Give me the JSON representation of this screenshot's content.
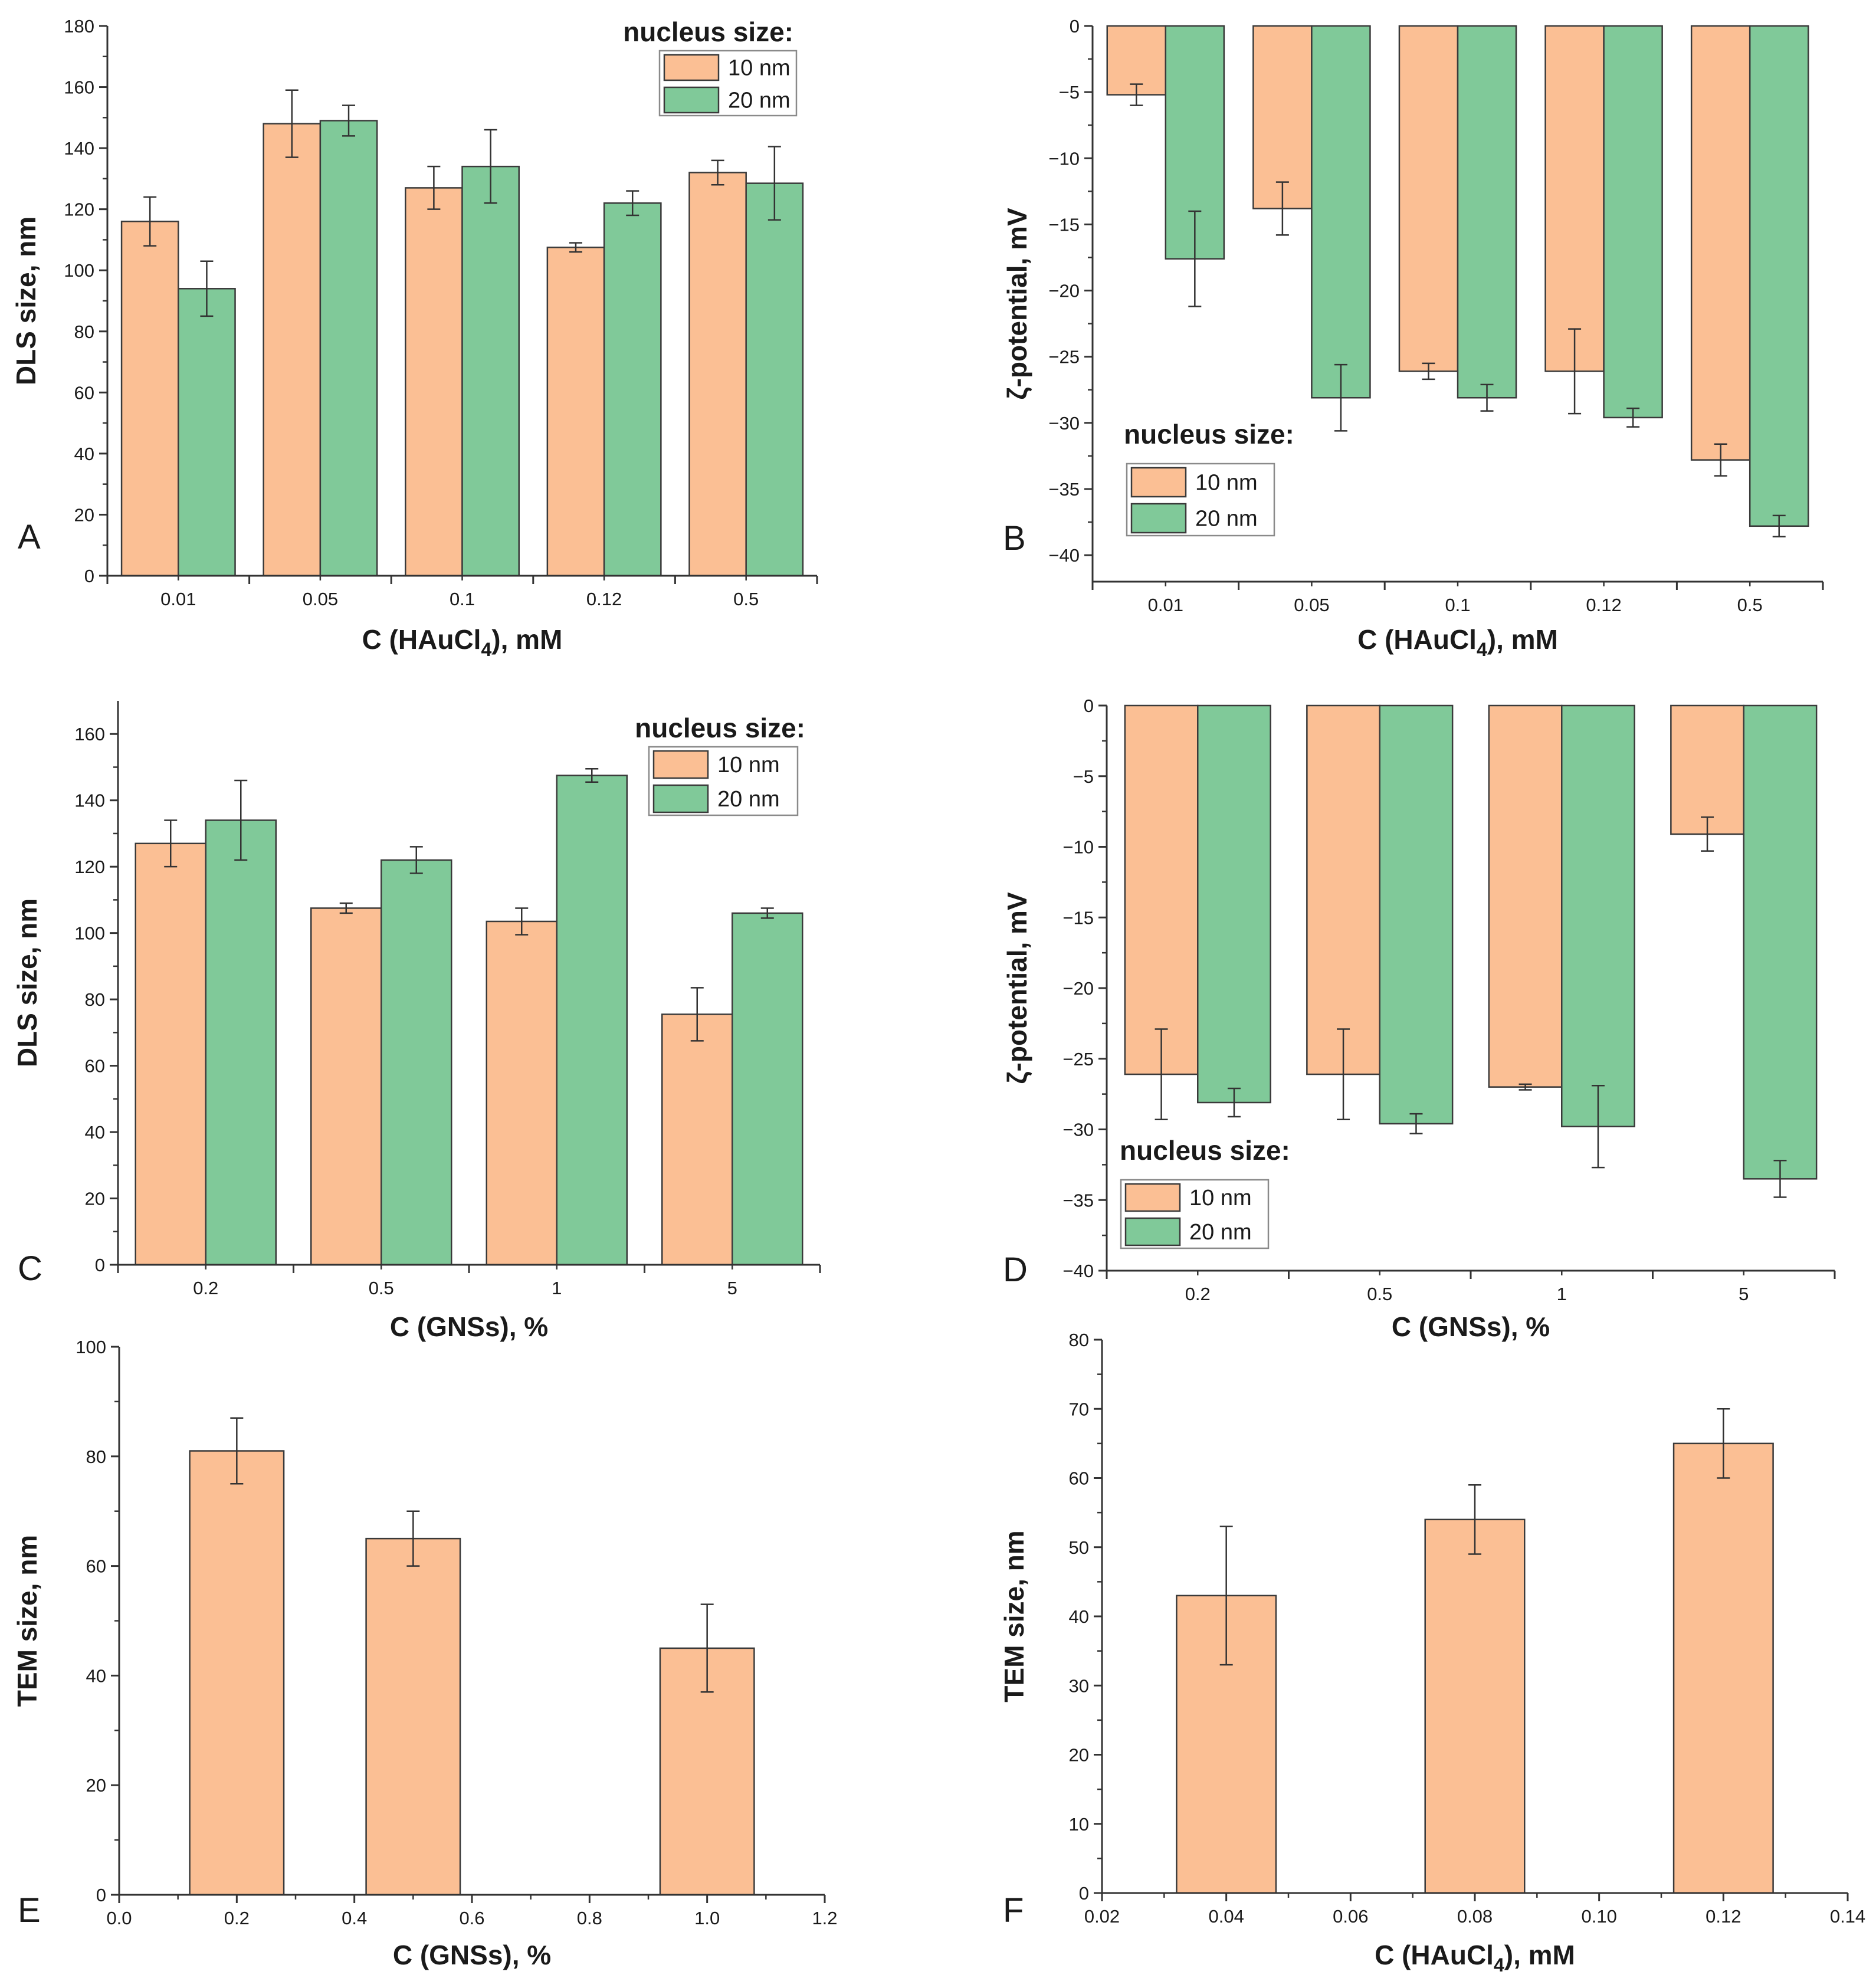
{
  "colors": {
    "nm10": "#fbbf94",
    "nm20": "#80c999",
    "axis": "#333333"
  },
  "chart_data": [
    {
      "id": "A",
      "type": "bar",
      "panel_label": "A",
      "xlabel": "C (HAuCl4), mM",
      "xlabel_main": "C (HAuCl",
      "xlabel_sub": "4",
      "xlabel_tail": "), mM",
      "ylabel": "DLS size, nm",
      "ylim": [
        0,
        180
      ],
      "yticks": [
        0,
        20,
        40,
        60,
        80,
        100,
        120,
        140,
        160,
        180
      ],
      "categories": [
        "0.01",
        "0.05",
        "0.1",
        "0.12",
        "0.5"
      ],
      "legend": {
        "title": "nucleus size:",
        "placement": "top-right"
      },
      "series": [
        {
          "name": "10 nm",
          "color_key": "nm10",
          "values": [
            116,
            148,
            127,
            107.5,
            132
          ],
          "errors": [
            8,
            11,
            7,
            1.5,
            4
          ]
        },
        {
          "name": "20 nm",
          "color_key": "nm20",
          "values": [
            94,
            149,
            134,
            122,
            128.5
          ],
          "errors": [
            9,
            5,
            12,
            4,
            12
          ]
        }
      ]
    },
    {
      "id": "B",
      "type": "bar",
      "panel_label": "B",
      "xlabel": "C (HAuCl4), mM",
      "xlabel_main": "C (HAuCl",
      "xlabel_sub": "4",
      "xlabel_tail": "), mM",
      "ylabel": "ζ-potential, mV",
      "ylim": [
        -42,
        0
      ],
      "yticks": [
        0,
        -5,
        -10,
        -15,
        -20,
        -25,
        -30,
        -35,
        -40
      ],
      "categories": [
        "0.01",
        "0.05",
        "0.1",
        "0.12",
        "0.5"
      ],
      "legend": {
        "title": "nucleus size:",
        "placement": "bottom-left"
      },
      "series": [
        {
          "name": "10 nm",
          "color_key": "nm10",
          "values": [
            -5.2,
            -13.8,
            -26.1,
            -26.1,
            -32.8
          ],
          "errors": [
            0.8,
            2,
            0.6,
            3.2,
            1.2
          ]
        },
        {
          "name": "20 nm",
          "color_key": "nm20",
          "values": [
            -17.6,
            -28.1,
            -28.1,
            -29.6,
            -37.8
          ],
          "errors": [
            3.6,
            2.5,
            1,
            0.7,
            0.8
          ]
        }
      ]
    },
    {
      "id": "C",
      "type": "bar",
      "panel_label": "C",
      "xlabel": "C (GNSs), %",
      "ylabel": "DLS size, nm",
      "ylim": [
        0,
        170
      ],
      "yticks": [
        0,
        20,
        40,
        60,
        80,
        100,
        120,
        140,
        160
      ],
      "categories": [
        "0.2",
        "0.5",
        "1",
        "5"
      ],
      "legend": {
        "title": "nucleus size:",
        "placement": "top-right"
      },
      "series": [
        {
          "name": "10 nm",
          "color_key": "nm10",
          "values": [
            127,
            107.5,
            103.5,
            75.5
          ],
          "errors": [
            7,
            1.5,
            4,
            8
          ]
        },
        {
          "name": "20 nm",
          "color_key": "nm20",
          "values": [
            134,
            122,
            147.5,
            106
          ],
          "errors": [
            12,
            4,
            2,
            1.5
          ]
        }
      ]
    },
    {
      "id": "D",
      "type": "bar",
      "panel_label": "D",
      "xlabel": "C (GNSs), %",
      "ylabel": "ζ-potential, mV",
      "ylim": [
        -40,
        0
      ],
      "yticks": [
        0,
        -5,
        -10,
        -15,
        -20,
        -25,
        -30,
        -35,
        -40
      ],
      "categories": [
        "0.2",
        "0.5",
        "1",
        "5"
      ],
      "legend": {
        "title": "nucleus size:",
        "placement": "bottom-left"
      },
      "series": [
        {
          "name": "10 nm",
          "color_key": "nm10",
          "values": [
            -26.1,
            -26.1,
            -27,
            -9.1
          ],
          "errors": [
            3.2,
            3.2,
            0.2,
            1.2
          ]
        },
        {
          "name": "20 nm",
          "color_key": "nm20",
          "values": [
            -28.1,
            -29.6,
            -29.8,
            -33.5
          ],
          "errors": [
            1,
            0.7,
            2.9,
            1.3
          ]
        }
      ]
    },
    {
      "id": "E",
      "type": "bar",
      "panel_label": "E",
      "xlabel": "C (GNSs), %",
      "ylabel": "TEM size, nm",
      "ylim": [
        0,
        100
      ],
      "yticks": [
        0,
        20,
        40,
        60,
        80,
        100
      ],
      "xlim": [
        0,
        1.2
      ],
      "xticks": [
        "0.0",
        "0.2",
        "0.4",
        "0.6",
        "0.8",
        "1.0",
        "1.2"
      ],
      "bar_width": 0.16,
      "series": [
        {
          "name": "10 nm",
          "color_key": "nm10",
          "x": [
            0.2,
            0.5,
            1.0
          ],
          "values": [
            81,
            65,
            45
          ],
          "errors": [
            6,
            5,
            8
          ]
        }
      ]
    },
    {
      "id": "F",
      "type": "bar",
      "panel_label": "F",
      "xlabel": "C (HAuCl4), mM",
      "xlabel_main": "C (HAuCl",
      "xlabel_sub": "4",
      "xlabel_tail": "), mM",
      "ylabel": "TEM size, nm",
      "ylim": [
        0,
        80
      ],
      "yticks": [
        0,
        10,
        20,
        30,
        40,
        50,
        60,
        70,
        80
      ],
      "xlim": [
        0.02,
        0.14
      ],
      "xticks": [
        "0.02",
        "0.04",
        "0.06",
        "0.08",
        "0.10",
        "0.12",
        "0.14"
      ],
      "bar_width": 0.016,
      "series": [
        {
          "name": "10 nm",
          "color_key": "nm10",
          "x": [
            0.04,
            0.08,
            0.12
          ],
          "values": [
            43,
            54,
            65
          ],
          "errors": [
            10,
            5,
            5
          ]
        }
      ]
    }
  ]
}
